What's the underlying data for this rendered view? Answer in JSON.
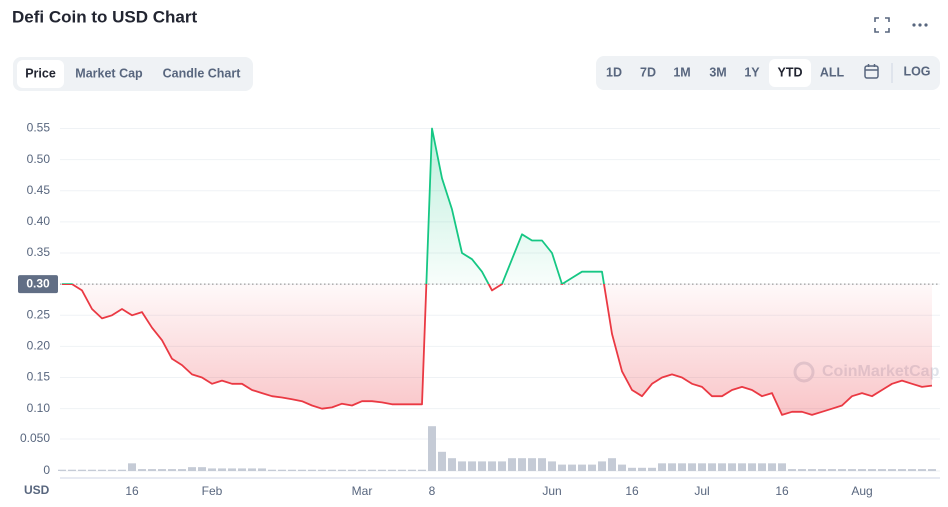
{
  "chart_data": {
    "type": "line",
    "title": "Defi Coin to USD Chart",
    "tabs": [
      "Price",
      "Market Cap",
      "Candle Chart"
    ],
    "active_tab": 0,
    "ranges": [
      "1D",
      "7D",
      "1M",
      "3M",
      "1Y",
      "YTD",
      "ALL"
    ],
    "active_range": 5,
    "log_button": "LOG",
    "watermark": "CoinMarketCap",
    "currency": "USD",
    "baseline": {
      "value": 0.3,
      "label": "0.30"
    },
    "above_color": "#16c784",
    "below_color": "#ea3943",
    "volume_color": "#c5cbd6",
    "categories": [
      null,
      null,
      null,
      null,
      null,
      null,
      null,
      "16",
      null,
      null,
      null,
      null,
      null,
      null,
      null,
      "Feb",
      null,
      null,
      null,
      null,
      null,
      null,
      null,
      null,
      null,
      null,
      null,
      null,
      null,
      null,
      "Mar",
      null,
      null,
      null,
      null,
      null,
      null,
      "8",
      null,
      null,
      null,
      null,
      null,
      null,
      null,
      null,
      null,
      null,
      null,
      "Jun",
      null,
      null,
      null,
      null,
      null,
      null,
      null,
      "16",
      null,
      null,
      null,
      null,
      null,
      null,
      "Jul",
      null,
      null,
      null,
      null,
      null,
      null,
      null,
      "16",
      null,
      null,
      null,
      null,
      null,
      null,
      null,
      "Aug",
      null,
      null,
      null,
      null,
      null,
      null,
      null
    ],
    "series": [
      {
        "name": "Price",
        "values": [
          0.3,
          0.3,
          0.29,
          0.26,
          0.245,
          0.25,
          0.26,
          0.25,
          0.255,
          0.23,
          0.21,
          0.18,
          0.17,
          0.155,
          0.15,
          0.14,
          0.145,
          0.14,
          0.14,
          0.13,
          0.125,
          0.12,
          0.118,
          0.115,
          0.112,
          0.105,
          0.1,
          0.102,
          0.108,
          0.105,
          0.112,
          0.112,
          0.11,
          0.107,
          0.107,
          0.107,
          0.107,
          0.55,
          0.47,
          0.42,
          0.35,
          0.34,
          0.32,
          0.29,
          0.3,
          0.34,
          0.38,
          0.37,
          0.37,
          0.35,
          0.3,
          0.31,
          0.32,
          0.32,
          0.32,
          0.22,
          0.16,
          0.13,
          0.12,
          0.14,
          0.15,
          0.155,
          0.15,
          0.14,
          0.135,
          0.12,
          0.12,
          0.13,
          0.135,
          0.13,
          0.12,
          0.125,
          0.09,
          0.095,
          0.095,
          0.09,
          0.095,
          0.1,
          0.105,
          0.12,
          0.125,
          0.12,
          0.13,
          0.14,
          0.145,
          0.14,
          0.135,
          0.137
        ]
      },
      {
        "name": "Volume",
        "axis": "y2",
        "values": [
          0.002,
          0.002,
          0.002,
          0.002,
          0.002,
          0.002,
          0.002,
          0.012,
          0.003,
          0.003,
          0.003,
          0.003,
          0.003,
          0.006,
          0.006,
          0.004,
          0.004,
          0.004,
          0.004,
          0.004,
          0.004,
          0.002,
          0.002,
          0.002,
          0.002,
          0.002,
          0.002,
          0.002,
          0.002,
          0.002,
          0.002,
          0.002,
          0.002,
          0.002,
          0.002,
          0.002,
          0.002,
          0.07,
          0.03,
          0.02,
          0.015,
          0.015,
          0.015,
          0.015,
          0.015,
          0.02,
          0.02,
          0.02,
          0.02,
          0.015,
          0.01,
          0.01,
          0.01,
          0.01,
          0.015,
          0.02,
          0.01,
          0.005,
          0.005,
          0.005,
          0.012,
          0.012,
          0.012,
          0.012,
          0.012,
          0.012,
          0.012,
          0.012,
          0.012,
          0.012,
          0.012,
          0.012,
          0.012,
          0.003,
          0.003,
          0.003,
          0.003,
          0.003,
          0.003,
          0.003,
          0.003,
          0.003,
          0.003,
          0.003,
          0.003,
          0.003,
          0.003,
          0.003
        ]
      }
    ],
    "ylim": [
      0.085,
      0.57
    ],
    "yticks": [
      {
        "value": 0.1,
        "label": "0.10"
      },
      0.15,
      {
        "value": 0.2,
        "label": "0.20"
      },
      0.25,
      {
        "value": 0.3,
        "label": "0.30"
      },
      0.35,
      {
        "value": 0.4,
        "label": "0.40"
      },
      0.45,
      {
        "value": 0.5,
        "label": "0.50"
      },
      0.55
    ],
    "y2lim": [
      0,
      0.07
    ],
    "y2ticks": [
      0,
      {
        "value": 0.05,
        "label": "0.050"
      }
    ],
    "grid": true
  }
}
